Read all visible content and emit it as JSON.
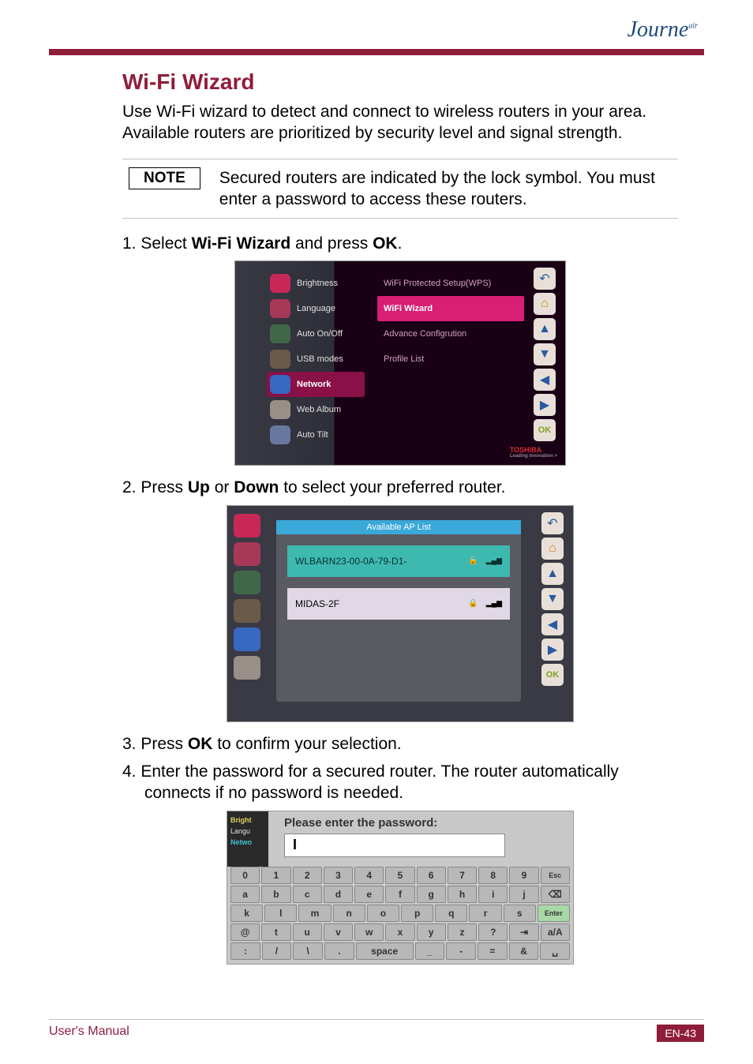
{
  "logo": "Journe",
  "logo_sub": "air",
  "title": "Wi-Fi Wizard",
  "intro": "Use Wi-Fi wizard to detect and connect to wireless routers in your area. Available routers are prioritized by security level and signal strength.",
  "note_label": "NOTE",
  "note_text": "Secured routers are indicated by the lock symbol. You must enter a password to access these routers.",
  "steps": {
    "s1_pre": "1.  Select ",
    "s1_b": "Wi-Fi Wizard",
    "s1_mid": " and press ",
    "s1_b2": "OK",
    "s1_post": ".",
    "s2_pre": "2.  Press ",
    "s2_b": "Up",
    "s2_mid": " or ",
    "s2_b2": "Down",
    "s2_post": " to select your preferred router.",
    "s3_pre": "3.  Press ",
    "s3_b": "OK",
    "s3_post": " to confirm your selection.",
    "s4": "4.  Enter the password for a secured router. The router automatically connects if no password is needed."
  },
  "ss1": {
    "menu": [
      "Brightness",
      "Language",
      "Auto On/Off",
      "USB modes",
      "Network",
      "Web Album",
      "Auto Tilt"
    ],
    "right": [
      "WiFi Protected Setup(WPS)",
      "WiFi Wizard",
      "Advance Configrution",
      "Profile List"
    ],
    "selected_idx": 1,
    "brand": "TOSHIBA",
    "brand_sub": "Leading Innovation >",
    "ok": "OK",
    "icon_colors": [
      "#c82858",
      "#a83858",
      "#406848",
      "#6a5a48",
      "#3868c0",
      "#989088",
      "#6878a0"
    ]
  },
  "ss2": {
    "header": "Available AP List",
    "aps": [
      {
        "ssid": "WLBARN23-00-0A-79-D1-",
        "secured": true,
        "selected": true
      },
      {
        "ssid": "MIDAS-2F",
        "secured": true,
        "selected": false
      }
    ],
    "ok": "OK"
  },
  "ss3": {
    "side": [
      "Bright",
      "Langu",
      "Netwo"
    ],
    "prompt": "Please enter the password:",
    "cursor": "I",
    "rows": [
      [
        "0",
        "1",
        "2",
        "3",
        "4",
        "5",
        "6",
        "7",
        "8",
        "9",
        "Esc"
      ],
      [
        "a",
        "b",
        "c",
        "d",
        "e",
        "f",
        "g",
        "h",
        "i",
        "j",
        "⌫"
      ],
      [
        "k",
        "l",
        "m",
        "n",
        "o",
        "p",
        "q",
        "r",
        "s",
        "Enter"
      ],
      [
        "@",
        "t",
        "u",
        "v",
        "w",
        "x",
        "y",
        "z",
        "?",
        "⇥",
        "a/A"
      ],
      [
        ":",
        "/",
        "\\",
        ".",
        "space",
        "_",
        "-",
        "=",
        "&",
        "␣"
      ]
    ]
  },
  "footer": {
    "left": "User's Manual",
    "right": "EN-43"
  },
  "colors": {
    "brand": "#8f1d3a",
    "accent": "#d81e75",
    "teal_sel": "#3eb9b0"
  }
}
